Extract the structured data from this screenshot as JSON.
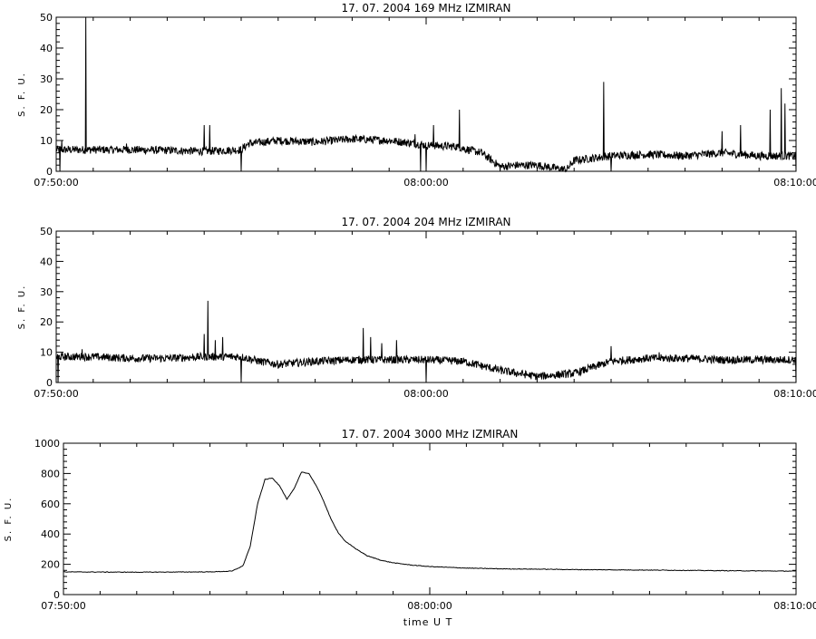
{
  "x_axis_label": "time  U T",
  "chart_data": [
    {
      "type": "line",
      "title": "17. 07. 2004   169 MHz   IZMIRAN",
      "ylabel": "S. F. U.",
      "xlabel": "",
      "x_tick_labels": [
        "07:50:00",
        "08:00:00",
        "08:10:00"
      ],
      "x_range_minutes": [
        0,
        20
      ],
      "ylim": [
        0,
        50
      ],
      "y_ticks": [
        0,
        10,
        20,
        30,
        40,
        50
      ],
      "grid": false,
      "series": [
        {
          "baseline_points": [
            [
              0,
              7
            ],
            [
              1,
              7
            ],
            [
              2,
              7
            ],
            [
              3,
              6.8
            ],
            [
              4,
              6.5
            ],
            [
              5,
              7
            ],
            [
              5.2,
              9
            ],
            [
              6,
              10
            ],
            [
              7,
              9.5
            ],
            [
              8,
              10.5
            ],
            [
              9,
              10
            ],
            [
              9.7,
              9
            ],
            [
              10,
              8.5
            ],
            [
              10.8,
              8
            ],
            [
              11.5,
              6
            ],
            [
              12,
              1.5
            ],
            [
              12.5,
              2
            ],
            [
              13,
              2
            ],
            [
              13.5,
              1
            ],
            [
              13.8,
              0.5
            ],
            [
              14,
              3.5
            ],
            [
              15,
              5
            ],
            [
              16,
              5.5
            ],
            [
              17,
              5
            ],
            [
              18,
              6
            ],
            [
              19,
              5
            ],
            [
              20,
              5
            ]
          ],
          "spikes": [
            [
              0.15,
              10
            ],
            [
              0.8,
              50
            ],
            [
              1.9,
              9
            ],
            [
              4,
              15
            ],
            [
              4.15,
              15
            ],
            [
              9.7,
              12
            ],
            [
              10.2,
              15
            ],
            [
              10.9,
              20
            ],
            [
              14.8,
              29
            ],
            [
              18,
              13
            ],
            [
              18.5,
              15
            ],
            [
              19.3,
              20
            ],
            [
              19.6,
              27
            ],
            [
              19.7,
              22
            ]
          ],
          "dips": [
            [
              0.1,
              0
            ],
            [
              5,
              0
            ],
            [
              9.85,
              0
            ],
            [
              10,
              0
            ],
            [
              15,
              0
            ],
            [
              20,
              0
            ]
          ]
        }
      ]
    },
    {
      "type": "line",
      "title": "17. 07. 2004   204 MHz   IZMIRAN",
      "ylabel": "S. F. U.",
      "xlabel": "",
      "x_tick_labels": [
        "07:50:00",
        "08:00:00",
        "08:10:00"
      ],
      "x_range_minutes": [
        0,
        20
      ],
      "ylim": [
        0,
        50
      ],
      "y_ticks": [
        0,
        10,
        20,
        30,
        40,
        50
      ],
      "grid": false,
      "series": [
        {
          "baseline_points": [
            [
              0,
              8.5
            ],
            [
              1,
              8.5
            ],
            [
              2,
              8
            ],
            [
              3,
              8
            ],
            [
              4,
              8.5
            ],
            [
              5,
              8.5
            ],
            [
              5.5,
              7
            ],
            [
              6,
              6
            ],
            [
              7,
              7
            ],
            [
              8,
              7.5
            ],
            [
              9,
              7.5
            ],
            [
              10,
              7.5
            ],
            [
              11,
              7
            ],
            [
              12,
              4
            ],
            [
              13,
              2
            ],
            [
              14,
              3
            ],
            [
              15,
              7
            ],
            [
              16,
              8
            ],
            [
              17,
              8
            ],
            [
              18,
              7.5
            ],
            [
              19,
              7.5
            ],
            [
              20,
              7.5
            ]
          ],
          "spikes": [
            [
              0.7,
              11
            ],
            [
              4,
              16
            ],
            [
              4.1,
              27
            ],
            [
              4.3,
              14
            ],
            [
              4.5,
              15
            ],
            [
              8.3,
              18
            ],
            [
              8.5,
              15
            ],
            [
              8.8,
              13
            ],
            [
              9.2,
              14
            ],
            [
              15,
              12
            ],
            [
              16.3,
              10
            ]
          ],
          "dips": [
            [
              0.05,
              0
            ],
            [
              5,
              0
            ],
            [
              10,
              0
            ],
            [
              15,
              0
            ],
            [
              20,
              0
            ]
          ]
        }
      ]
    },
    {
      "type": "line",
      "title": "17. 07. 2004    3000 MHz    IZMIRAN",
      "ylabel": "S. F. U.",
      "xlabel": "time  U T",
      "x_tick_labels": [
        "07:50:00",
        "08:00:00",
        "08:10:00"
      ],
      "x_range_minutes": [
        0,
        20
      ],
      "ylim": [
        0,
        1000
      ],
      "y_ticks": [
        0,
        200,
        400,
        600,
        800,
        1000
      ],
      "grid": false,
      "series": [
        {
          "points": [
            [
              0,
              150
            ],
            [
              2,
              148
            ],
            [
              4,
              150
            ],
            [
              4.6,
              155
            ],
            [
              4.9,
              190
            ],
            [
              5.1,
              320
            ],
            [
              5.3,
              600
            ],
            [
              5.5,
              760
            ],
            [
              5.7,
              770
            ],
            [
              5.9,
              720
            ],
            [
              6.1,
              630
            ],
            [
              6.3,
              700
            ],
            [
              6.5,
              810
            ],
            [
              6.7,
              800
            ],
            [
              6.9,
              720
            ],
            [
              7.1,
              620
            ],
            [
              7.3,
              500
            ],
            [
              7.5,
              410
            ],
            [
              7.7,
              350
            ],
            [
              8,
              300
            ],
            [
              8.3,
              255
            ],
            [
              8.7,
              225
            ],
            [
              9,
              210
            ],
            [
              9.5,
              195
            ],
            [
              10,
              185
            ],
            [
              11,
              175
            ],
            [
              12,
              170
            ],
            [
              13,
              168
            ],
            [
              14,
              165
            ],
            [
              16,
              162
            ],
            [
              18,
              158
            ],
            [
              20,
              155
            ]
          ]
        }
      ]
    }
  ]
}
